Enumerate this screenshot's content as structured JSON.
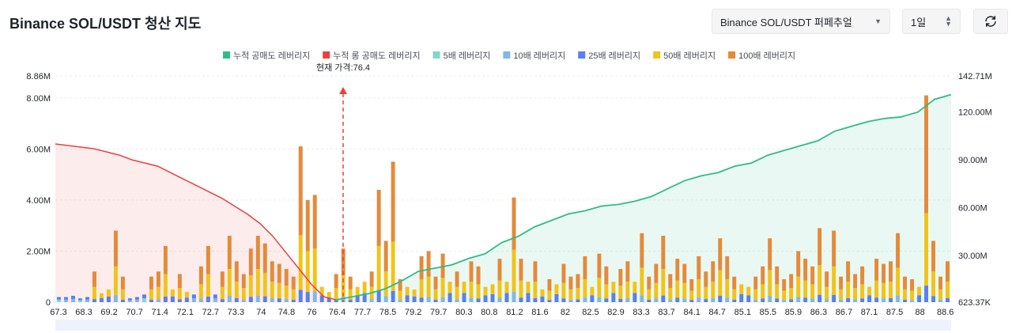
{
  "header": {
    "title": "Binance SOL/USDT 청산 지도",
    "exchange_select": "Binance SOL/USDT 퍼페추얼",
    "period_select": "1일"
  },
  "colors": {
    "cum_short": "#2ebd85",
    "cum_long": "#e84142",
    "lev5": "#7fd8d0",
    "lev10": "#83b7e6",
    "lev25": "#5a7ff0",
    "lev50": "#f0c419",
    "lev100": "#e48a39"
  },
  "chart_data": {
    "type": "bar",
    "title": "Binance SOL/USDT 청산 지도",
    "current_price_label": "현재 가격:76.4",
    "current_price": 76.4,
    "legend": [
      "누적 공매도 레버리지",
      "누적 롱 공매도 레버리지",
      "5배 레버리지",
      "10배 레버리지",
      "25배 레버리지",
      "50배 레버리지",
      "100배 레버리지"
    ],
    "x_ticks": [
      "67.3",
      "68.3",
      "69.2",
      "70.7",
      "71.4",
      "72.1",
      "72.7",
      "73.3",
      "74",
      "74.8",
      "76",
      "76.4",
      "77.7",
      "78.5",
      "79.2",
      "79.7",
      "80.3",
      "80.8",
      "81.2",
      "81.6",
      "82",
      "82.5",
      "82.9",
      "83.3",
      "83.7",
      "84.1",
      "84.7",
      "85.1",
      "85.5",
      "85.9",
      "86.3",
      "86.7",
      "87.1",
      "87.5",
      "88",
      "88.6"
    ],
    "y_left_ticks": [
      "0",
      "2.00M",
      "4.00M",
      "6.00M",
      "8.00M",
      "8.86M"
    ],
    "y_left_values": [
      0,
      2,
      4,
      6,
      8,
      8.86
    ],
    "y_left_range": [
      0,
      8.86
    ],
    "y_right_ticks": [
      "623.37K",
      "30.00M",
      "60.00M",
      "90.00M",
      "120.00M",
      "142.71M"
    ],
    "y_right_values": [
      0.62337,
      30,
      60,
      90,
      120,
      142.71
    ],
    "y_right_range": [
      0.62337,
      142.71
    ],
    "bars_total_millions": [
      0.2,
      0.2,
      0.25,
      0.15,
      0.2,
      1.2,
      0.35,
      0.5,
      2.8,
      1.0,
      0.15,
      0.2,
      0.3,
      1.0,
      1.2,
      2.2,
      0.5,
      1.1,
      0.4,
      0.3,
      1.4,
      2.2,
      0.3,
      1.2,
      2.6,
      1.6,
      1.1,
      2.1,
      2.6,
      2.3,
      1.6,
      1.5,
      1.3,
      1.0,
      6.1,
      4.0,
      4.2,
      0.6,
      0.4,
      1.1,
      2.1,
      1.0,
      0.6,
      0.8,
      1.2,
      4.4,
      2.4,
      5.5,
      0.9,
      0.6,
      0.5,
      1.8,
      2.0,
      1.0,
      1.9,
      0.8,
      1.2,
      0.8,
      1.6,
      1.4,
      0.6,
      0.7,
      1.7,
      0.8,
      4.1,
      1.7,
      0.8,
      1.6,
      0.5,
      0.9,
      0.7,
      1.5,
      1.0,
      1.1,
      1.8,
      0.6,
      1.9,
      1.4,
      0.8,
      1.3,
      1.6,
      0.8,
      2.7,
      1.0,
      1.5,
      2.6,
      1.1,
      1.7,
      1.5,
      0.9,
      1.8,
      1.2,
      1.6,
      2.5,
      1.8,
      1.0,
      0.7,
      0.6,
      1.0,
      1.4,
      2.5,
      1.4,
      0.9,
      1.1,
      2.0,
      1.7,
      1.4,
      2.9,
      1.2,
      2.8,
      1.0,
      1.6,
      1.1,
      1.4,
      0.6,
      1.7,
      1.5,
      1.6,
      2.7,
      1.0,
      0.9,
      0.6,
      8.1,
      2.4,
      1.0,
      1.6
    ],
    "cum_long_millions": [
      100,
      99,
      98,
      97,
      95,
      93,
      90,
      88,
      86,
      82,
      78,
      74,
      70,
      66,
      61,
      56,
      50,
      42,
      32,
      22,
      12,
      4,
      2
    ],
    "cum_short_millions": [
      2,
      4,
      6,
      9,
      14,
      20,
      22,
      24,
      28,
      31,
      38,
      42,
      48,
      52,
      56,
      58,
      61,
      62,
      64,
      67,
      72,
      77,
      80,
      82,
      86,
      88,
      93,
      96,
      99,
      102,
      108,
      111,
      114,
      116,
      117,
      120,
      128,
      131
    ]
  }
}
